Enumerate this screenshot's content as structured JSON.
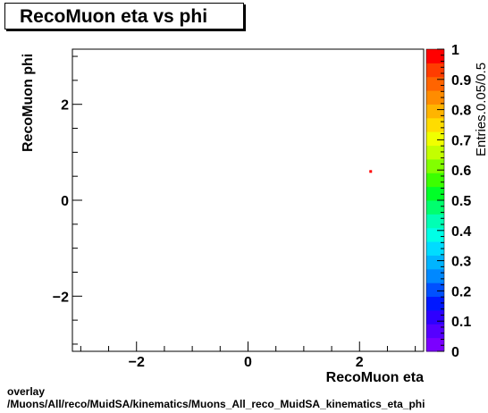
{
  "chart_data": {
    "type": "heatmap",
    "title": "RecoMuon eta vs phi",
    "xlabel": "RecoMuon eta",
    "ylabel": "RecoMuon phi",
    "zlabel": "Entries.0.05/0.5",
    "xlim": [
      -3.15,
      3.15
    ],
    "ylim": [
      -3.15,
      3.15
    ],
    "zlim": [
      0,
      1
    ],
    "x_ticks": [
      -2,
      0,
      2
    ],
    "x_tick_labels": [
      "−2",
      "0",
      "2"
    ],
    "y_ticks": [
      -2,
      0,
      2
    ],
    "y_tick_labels": [
      "−2",
      "0",
      "2"
    ],
    "z_ticks": [
      0,
      0.1,
      0.2,
      0.3,
      0.4,
      0.5,
      0.6,
      0.7,
      0.8,
      0.9,
      1
    ],
    "z_tick_labels": [
      "0",
      "0.1",
      "0.2",
      "0.3",
      "0.4",
      "0.5",
      "0.6",
      "0.7",
      "0.8",
      "0.9",
      "1"
    ],
    "palette": [
      "#7b00ff",
      "#5500ff",
      "#2e00ff",
      "#0018ff",
      "#0050ff",
      "#0088ff",
      "#00b4ff",
      "#00dcff",
      "#00ffe6",
      "#00ffb4",
      "#00ff6e",
      "#00ff28",
      "#3cff00",
      "#82ff00",
      "#c3ff00",
      "#f0ff00",
      "#ffdc00",
      "#ffb400",
      "#ff8c00",
      "#ff6400",
      "#ff3c00",
      "#ff0000"
    ],
    "cells": [
      {
        "x": 2.2,
        "y": 0.6,
        "value": 1
      }
    ],
    "grid": false
  },
  "footer": {
    "line1": "overlay",
    "line2": "/Muons/All/reco/MuidSA/kinematics/Muons_All_reco_MuidSA_kinematics_eta_phi"
  }
}
